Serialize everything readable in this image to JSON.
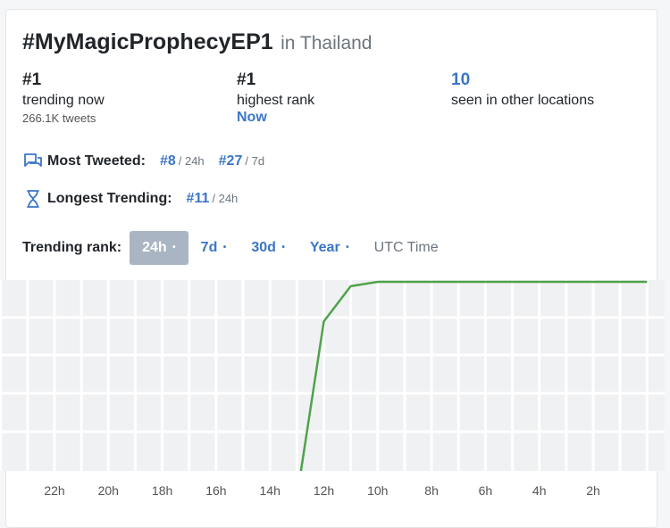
{
  "title": {
    "hashtag": "#MyMagicProphecyEP1",
    "location": "in Thailand"
  },
  "stats": {
    "trending": {
      "rank": "#1",
      "label": "trending now",
      "tweets": "266.1K tweets"
    },
    "highest": {
      "rank": "#1",
      "label": "highest rank",
      "when": "Now"
    },
    "other_locations": {
      "count": "10",
      "label": "seen in other locations"
    }
  },
  "most_tweeted": {
    "icon": "chat-bubbles-icon",
    "label": "Most Tweeted:",
    "ranks": [
      {
        "rank": "#8",
        "period": "/ 24h"
      },
      {
        "rank": "#27",
        "period": "/ 7d"
      }
    ]
  },
  "longest_trending": {
    "icon": "hourglass-icon",
    "label": "Longest Trending:",
    "ranks": [
      {
        "rank": "#11",
        "period": "/ 24h"
      }
    ]
  },
  "tabs": {
    "label": "Trending rank:",
    "items": [
      {
        "label": "24h",
        "dot": "•",
        "active": true
      },
      {
        "label": "7d",
        "dot": "•",
        "active": false
      },
      {
        "label": "30d",
        "dot": "•",
        "active": false
      },
      {
        "label": "Year",
        "dot": "•",
        "active": false
      }
    ],
    "utc": "UTC Time"
  },
  "colors": {
    "accent": "#3b76c6",
    "line": "#4fa34a",
    "grid_bg": "#f0f1f3",
    "active_tab": "#a9b5c3"
  },
  "chart_data": {
    "type": "line",
    "xlabel": "",
    "ylabel": "",
    "x_tick_labels": [
      "22h",
      "20h",
      "18h",
      "16h",
      "14h",
      "12h",
      "10h",
      "8h",
      "6h",
      "4h",
      "2h"
    ],
    "x_range_hours_ago": [
      24,
      0
    ],
    "y_range_rank": [
      1,
      50
    ],
    "y_inverted": true,
    "series": [
      {
        "points": [
          {
            "x": 13.0,
            "y": 50
          },
          {
            "x": 12.0,
            "y": 10
          },
          {
            "x": 11.0,
            "y": 2
          },
          {
            "x": 10.0,
            "y": 1
          },
          {
            "x": 0,
            "y": 1
          }
        ]
      }
    ],
    "grid": true
  }
}
